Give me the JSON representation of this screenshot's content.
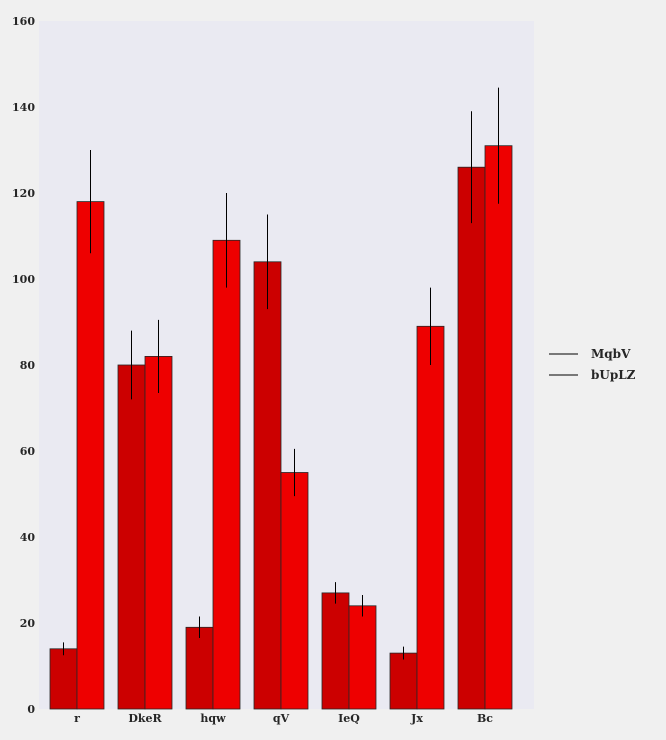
{
  "colors": {
    "page_background": "#f0f0f0",
    "plot_background": "#eaeaf2",
    "series_1": "#cc0000",
    "series_2": "#ee0000",
    "bar_edge": "#262626",
    "error_bar": "#000000"
  },
  "chart_data": {
    "type": "bar",
    "title": "",
    "xlabel": "",
    "ylabel": "",
    "categories": [
      "r",
      "DkeR",
      "hqw",
      "qV",
      "IeQ",
      "Jx",
      "Bc"
    ],
    "ylim": [
      0,
      160
    ],
    "yticks": [
      "0",
      "20",
      "40",
      "60",
      "80",
      "100",
      "120",
      "140",
      "160"
    ],
    "grid": false,
    "legend_position": "right",
    "series": [
      {
        "name": "MqbV",
        "color": "#cc0000",
        "values": [
          14,
          80,
          19,
          104,
          27,
          13,
          126
        ],
        "errors": [
          1.5,
          8,
          2.5,
          11,
          2.5,
          1.5,
          13
        ]
      },
      {
        "name": "bUpLZ",
        "color": "#ee0000",
        "values": [
          118,
          82,
          109,
          55,
          24,
          89,
          131
        ],
        "errors": [
          12,
          8.5,
          11,
          5.5,
          2.5,
          9,
          13.5
        ]
      }
    ]
  }
}
